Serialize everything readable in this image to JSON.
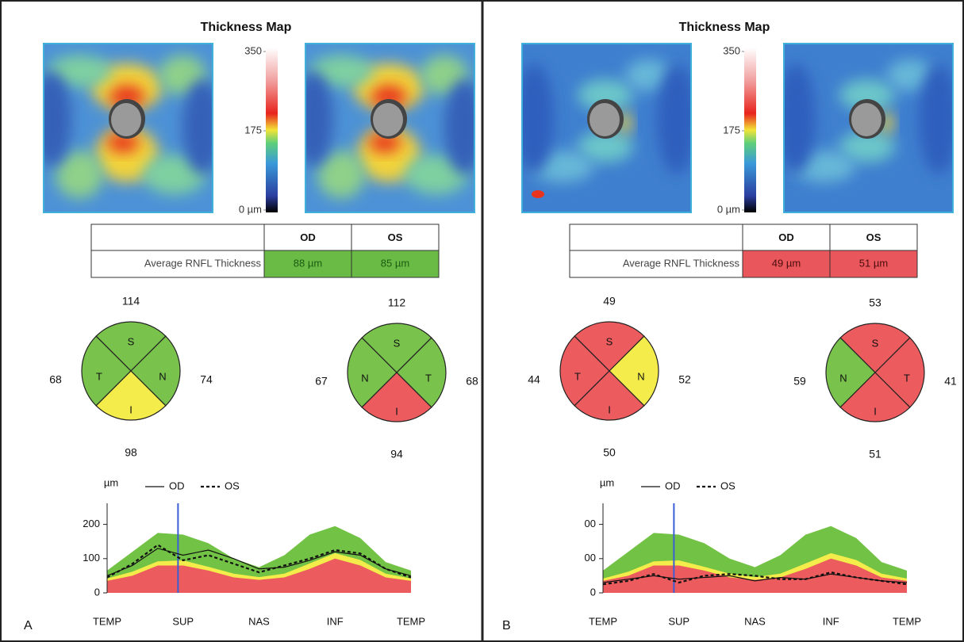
{
  "panels": [
    {
      "label": "A",
      "title": "Thickness Map",
      "colorbar_ticks": [
        350,
        175,
        {
          "value": 0,
          "label": "0 µm"
        }
      ],
      "table": {
        "columns": [
          "OD",
          "OS"
        ],
        "row_label": "Average RNFL Thickness",
        "cells": [
          "88 µm",
          "85 µm"
        ],
        "cell_color": "#69bb45",
        "text_color": "#1d5c12"
      },
      "circles": [
        {
          "quadrants": [
            {
              "letter": "S",
              "value": 114,
              "color": "#79c24c"
            },
            {
              "letter": "T",
              "value": 68,
              "color": "#79c24c"
            },
            {
              "letter": "N",
              "value": 74,
              "color": "#79c24c"
            },
            {
              "letter": "I",
              "value": 98,
              "color": "#f3ec4a"
            }
          ]
        },
        {
          "quadrants": [
            {
              "letter": "S",
              "value": 112,
              "color": "#79c24c"
            },
            {
              "letter": "N",
              "value": 67,
              "color": "#79c24c"
            },
            {
              "letter": "T",
              "value": 68,
              "color": "#79c24c"
            },
            {
              "letter": "I",
              "value": 94,
              "color": "#ec5b5e"
            }
          ]
        }
      ],
      "chart": {
        "type": "line",
        "y_label": "µm",
        "x": [
          0,
          1,
          2,
          3,
          4,
          5,
          6,
          7,
          8,
          9,
          10,
          11,
          12
        ],
        "xlim": [
          0,
          12
        ],
        "xticks": [
          {
            "value": 0,
            "label": "TEMP"
          },
          {
            "value": 3,
            "label": "SUP"
          },
          {
            "value": 6,
            "label": "NAS"
          },
          {
            "value": 9,
            "label": "INF"
          },
          {
            "value": 12,
            "label": "TEMP"
          }
        ],
        "ylim": [
          0,
          250
        ],
        "yticks": [
          0,
          100,
          200
        ],
        "cursor_x": 2.8,
        "cursor_color": "#3d5fd6",
        "bands": [
          {
            "color": "#72c245",
            "values": [
              65,
              120,
              175,
              170,
              145,
              100,
              75,
              110,
              170,
              195,
              160,
              90,
              65
            ]
          },
          {
            "color": "#f3ec4a",
            "values": [
              42,
              62,
              92,
              95,
              76,
              56,
              46,
              56,
              86,
              116,
              96,
              56,
              42
            ]
          },
          {
            "color": "#ec5b5e",
            "values": [
              35,
              50,
              80,
              80,
              65,
              45,
              38,
              45,
              70,
              100,
              80,
              45,
              35
            ]
          }
        ],
        "series": [
          {
            "name": "OD",
            "color": "#111111",
            "dashed": false,
            "values": [
              50,
              80,
              130,
              110,
              125,
              100,
              70,
              75,
              95,
              120,
              110,
              70,
              50
            ]
          },
          {
            "name": "OS",
            "color": "#111111",
            "dashed": true,
            "values": [
              45,
              85,
              140,
              95,
              110,
              85,
              60,
              80,
              100,
              125,
              115,
              70,
              45
            ]
          }
        ]
      }
    },
    {
      "label": "B",
      "title": "Thickness Map",
      "colorbar_ticks": [
        350,
        175,
        {
          "value": 0,
          "label": "0 µm"
        }
      ],
      "table": {
        "columns": [
          "OD",
          "OS"
        ],
        "row_label": "Average RNFL Thickness",
        "cells": [
          "49 µm",
          "51 µm"
        ],
        "cell_color": "#e9565b",
        "text_color": "#4a0c0c"
      },
      "circles": [
        {
          "quadrants": [
            {
              "letter": "S",
              "value": 49,
              "color": "#ec5b5e"
            },
            {
              "letter": "T",
              "value": 44,
              "color": "#ec5b5e"
            },
            {
              "letter": "N",
              "value": 52,
              "color": "#f3ec4a"
            },
            {
              "letter": "I",
              "value": 50,
              "color": "#ec5b5e"
            }
          ]
        },
        {
          "quadrants": [
            {
              "letter": "S",
              "value": 53,
              "color": "#ec5b5e"
            },
            {
              "letter": "N",
              "value": 59,
              "color": "#79c24c"
            },
            {
              "letter": "T",
              "value": 41,
              "color": "#ec5b5e"
            },
            {
              "letter": "I",
              "value": 51,
              "color": "#ec5b5e"
            }
          ]
        }
      ],
      "chart": {
        "type": "line",
        "y_label": "µm",
        "x": [
          0,
          1,
          2,
          3,
          4,
          5,
          6,
          7,
          8,
          9,
          10,
          11,
          12
        ],
        "xlim": [
          0,
          12
        ],
        "xticks": [
          {
            "value": 0,
            "label": "TEMP"
          },
          {
            "value": 3,
            "label": "SUP"
          },
          {
            "value": 6,
            "label": "NAS"
          },
          {
            "value": 9,
            "label": "INF"
          },
          {
            "value": 12,
            "label": "TEMP"
          }
        ],
        "ylim": [
          0,
          250
        ],
        "yticks": [
          0,
          {
            "value": 100,
            "label": "00"
          },
          {
            "value": 200,
            "label": "00"
          }
        ],
        "cursor_x": 2.8,
        "cursor_color": "#3d5fd6",
        "bands": [
          {
            "color": "#72c245",
            "values": [
              65,
              120,
              175,
              170,
              145,
              100,
              75,
              110,
              170,
              195,
              160,
              90,
              65
            ]
          },
          {
            "color": "#f3ec4a",
            "values": [
              42,
              62,
              92,
              95,
              76,
              56,
              46,
              56,
              86,
              116,
              96,
              56,
              42
            ]
          },
          {
            "color": "#ec5b5e",
            "values": [
              35,
              50,
              80,
              80,
              65,
              45,
              38,
              45,
              70,
              100,
              80,
              45,
              35
            ]
          }
        ],
        "series": [
          {
            "name": "OD",
            "color": "#111111",
            "dashed": false,
            "values": [
              30,
              40,
              50,
              40,
              45,
              50,
              35,
              45,
              40,
              55,
              45,
              35,
              30
            ]
          },
          {
            "name": "OS",
            "color": "#111111",
            "dashed": true,
            "values": [
              25,
              35,
              55,
              30,
              50,
              55,
              50,
              40,
              40,
              60,
              45,
              35,
              25
            ]
          }
        ]
      }
    }
  ]
}
